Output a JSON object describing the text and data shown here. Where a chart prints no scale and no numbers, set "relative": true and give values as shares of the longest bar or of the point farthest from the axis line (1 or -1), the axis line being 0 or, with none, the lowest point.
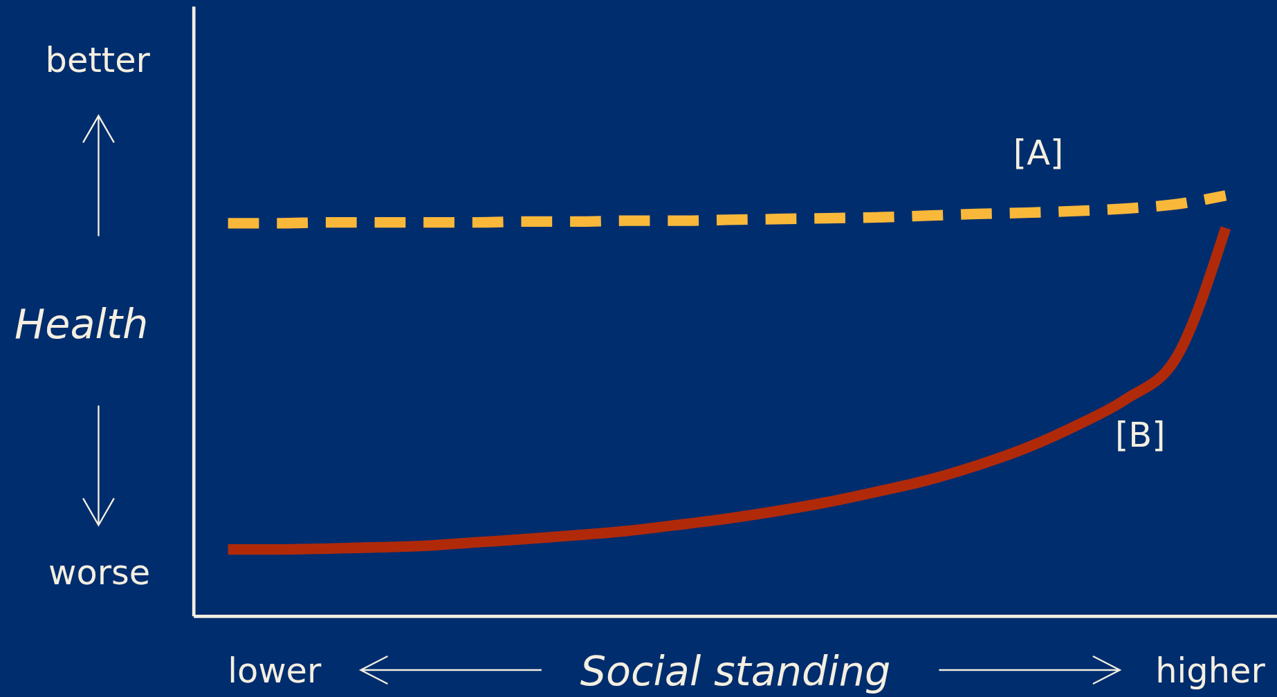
{
  "chart_data": {
    "type": "line",
    "relative": true,
    "xlabel": "Social standing",
    "ylabel": "Health",
    "categories": [
      null,
      null,
      null,
      null,
      null,
      null,
      null,
      null,
      null,
      null,
      null,
      null,
      null,
      null,
      null,
      null,
      null,
      null,
      null,
      null,
      null
    ],
    "series": [
      {
        "name": "[A]",
        "color": "#f9b83a",
        "line_style": "dashed",
        "values": [
          0.934,
          0.934,
          0.936,
          0.936,
          0.936,
          0.936,
          0.938,
          0.938,
          0.94,
          0.94,
          0.942,
          0.944,
          0.946,
          0.948,
          0.952,
          0.956,
          0.959,
          0.963,
          0.969,
          0.979,
          1.0
        ]
      },
      {
        "name": "[B]",
        "color": "#b02a0a",
        "line_style": "solid",
        "values": [
          0.159,
          0.159,
          0.161,
          0.164,
          0.168,
          0.176,
          0.184,
          0.193,
          0.203,
          0.217,
          0.232,
          0.25,
          0.271,
          0.296,
          0.323,
          0.358,
          0.4,
          0.453,
          0.516,
          0.613,
          0.923
        ]
      }
    ],
    "annotations": [
      "better",
      "worse",
      "lower",
      "higher"
    ],
    "marker": "none"
  }
}
